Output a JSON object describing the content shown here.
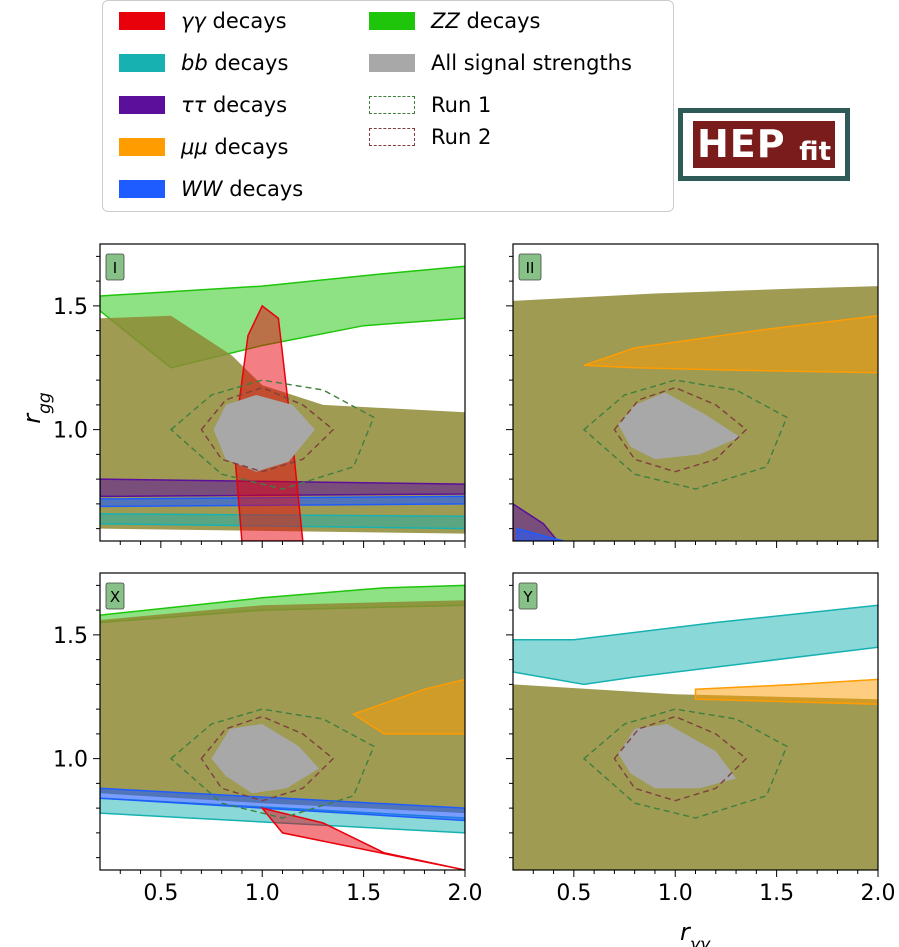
{
  "legend": {
    "items": [
      {
        "id": "gg",
        "italic": "γγ",
        "text": " decays",
        "color": "#e8000b",
        "style": "solid"
      },
      {
        "id": "bb",
        "italic": "bb",
        "text": " decays",
        "color": "#17b1b1",
        "style": "solid"
      },
      {
        "id": "tautau",
        "italic": "ττ",
        "text": " decays",
        "color": "#5b0f9b",
        "style": "solid"
      },
      {
        "id": "mumu",
        "italic": "μμ",
        "text": " decays",
        "color": "#ff9c00",
        "style": "solid"
      },
      {
        "id": "ww",
        "italic": "WW",
        "text": " decays",
        "color": "#1f5cff",
        "style": "solid"
      },
      {
        "id": "zz",
        "italic": "ZZ",
        "text": " decays",
        "color": "#1ec50a",
        "style": "solid"
      },
      {
        "id": "all",
        "italic": "",
        "text": "All signal strengths",
        "color": "#a8a8a8",
        "style": "solid"
      },
      {
        "id": "run1",
        "italic": "",
        "text": "Run 1",
        "color": "#3f7f3f",
        "style": "dashed"
      },
      {
        "id": "run2",
        "italic": "",
        "text": "Run 2",
        "color": "#7f3f3f",
        "style": "dashed"
      }
    ]
  },
  "logo": {
    "big": "HEP",
    "small": "fit"
  },
  "colors": {
    "zz": "#1ec50a",
    "bb": "#17b1b1",
    "tautau": "#5b0f9b",
    "mumu": "#ff9c00",
    "ww": "#1f5cff",
    "gg": "#e8000b",
    "all": "#a8a8a8",
    "olive": "#8e8a34",
    "run1": "#3f7f3f",
    "run2": "#7f3f3f"
  },
  "axes": {
    "xlabel_base": "r",
    "xlabel_sub": "γγ",
    "ylabel_base": "r",
    "ylabel_sub": "gg",
    "x_ticks": [
      "0.5",
      "1.0",
      "1.5",
      "2.0"
    ],
    "y_ticks": [
      "1.0",
      "1.5"
    ]
  },
  "chart_data": [
    {
      "type": "area",
      "panel": "I",
      "xlim": [
        0.2,
        2.0
      ],
      "ylim": [
        0.55,
        1.75
      ],
      "x_ticks": [
        0.5,
        1.0,
        1.5,
        2.0
      ],
      "y_ticks": [
        1.0,
        1.5
      ],
      "regions": {
        "zz": [
          [
            0.2,
            1.54
          ],
          [
            1.0,
            1.58
          ],
          [
            1.6,
            1.63
          ],
          [
            2.0,
            1.66
          ],
          [
            2.0,
            1.45
          ],
          [
            1.5,
            1.42
          ],
          [
            1.0,
            1.34
          ],
          [
            0.55,
            1.25
          ],
          [
            0.2,
            1.48
          ]
        ],
        "olive": [
          [
            0.2,
            1.45
          ],
          [
            0.55,
            1.46
          ],
          [
            0.85,
            1.3
          ],
          [
            1.0,
            1.18
          ],
          [
            1.3,
            1.1
          ],
          [
            2.0,
            1.07
          ],
          [
            2.0,
            0.58
          ],
          [
            0.2,
            0.6
          ]
        ],
        "tautau": [
          [
            0.2,
            0.73
          ],
          [
            2.0,
            0.74
          ],
          [
            2.0,
            0.78
          ],
          [
            0.2,
            0.8
          ]
        ],
        "bb": [
          [
            0.2,
            0.62
          ],
          [
            2.0,
            0.6
          ],
          [
            2.0,
            0.65
          ],
          [
            0.2,
            0.66
          ]
        ],
        "ww": [
          [
            0.2,
            0.69
          ],
          [
            2.0,
            0.7
          ],
          [
            2.0,
            0.73
          ],
          [
            0.2,
            0.72
          ]
        ],
        "gg": [
          [
            0.9,
            0.55
          ],
          [
            0.86,
            0.95
          ],
          [
            0.93,
            1.38
          ],
          [
            1.0,
            1.5
          ],
          [
            1.08,
            1.45
          ],
          [
            1.15,
            0.95
          ],
          [
            1.2,
            0.55
          ]
        ],
        "all": [
          [
            0.76,
            1.0
          ],
          [
            0.82,
            1.1
          ],
          [
            0.97,
            1.14
          ],
          [
            1.15,
            1.1
          ],
          [
            1.26,
            1.0
          ],
          [
            1.13,
            0.87
          ],
          [
            0.97,
            0.83
          ],
          [
            0.82,
            0.88
          ]
        ]
      }
    },
    {
      "type": "area",
      "panel": "II",
      "xlim": [
        0.2,
        2.0
      ],
      "ylim": [
        0.55,
        1.75
      ],
      "x_ticks": [
        0.5,
        1.0,
        1.5,
        2.0
      ],
      "y_ticks": [
        1.0,
        1.5
      ],
      "regions": {
        "olive": [
          [
            0.2,
            1.52
          ],
          [
            0.9,
            1.55
          ],
          [
            1.6,
            1.57
          ],
          [
            2.0,
            1.58
          ],
          [
            2.0,
            0.55
          ],
          [
            0.2,
            0.55
          ]
        ],
        "mumu": [
          [
            0.55,
            1.26
          ],
          [
            0.8,
            1.33
          ],
          [
            1.4,
            1.4
          ],
          [
            2.0,
            1.46
          ],
          [
            2.0,
            1.23
          ],
          [
            1.3,
            1.24
          ],
          [
            0.8,
            1.25
          ]
        ],
        "all": [
          [
            0.72,
            1.02
          ],
          [
            0.8,
            1.1
          ],
          [
            0.95,
            1.15
          ],
          [
            1.15,
            1.06
          ],
          [
            1.32,
            0.97
          ],
          [
            1.12,
            0.9
          ],
          [
            0.9,
            0.88
          ],
          [
            0.78,
            0.93
          ]
        ],
        "tautau": [
          [
            0.2,
            0.7
          ],
          [
            0.35,
            0.62
          ],
          [
            0.42,
            0.55
          ],
          [
            0.2,
            0.55
          ]
        ],
        "ww": [
          [
            0.22,
            0.6
          ],
          [
            0.4,
            0.56
          ],
          [
            0.45,
            0.55
          ],
          [
            0.22,
            0.55
          ]
        ]
      }
    },
    {
      "type": "area",
      "panel": "X",
      "xlim": [
        0.2,
        2.0
      ],
      "ylim": [
        0.55,
        1.75
      ],
      "x_ticks": [
        0.5,
        1.0,
        1.5,
        2.0
      ],
      "y_ticks": [
        1.0,
        1.5
      ],
      "regions": {
        "zz": [
          [
            0.2,
            1.58
          ],
          [
            1.0,
            1.65
          ],
          [
            1.6,
            1.69
          ],
          [
            2.0,
            1.7
          ],
          [
            2.0,
            1.62
          ],
          [
            1.0,
            1.6
          ],
          [
            0.2,
            1.55
          ]
        ],
        "olive": [
          [
            0.2,
            1.56
          ],
          [
            1.0,
            1.62
          ],
          [
            2.0,
            1.64
          ],
          [
            2.0,
            0.78
          ],
          [
            1.0,
            0.82
          ],
          [
            0.2,
            0.86
          ]
        ],
        "mumu": [
          [
            1.45,
            1.18
          ],
          [
            1.8,
            1.28
          ],
          [
            2.0,
            1.32
          ],
          [
            2.0,
            1.1
          ],
          [
            1.6,
            1.1
          ]
        ],
        "bb": [
          [
            0.2,
            0.84
          ],
          [
            2.0,
            0.76
          ],
          [
            2.0,
            0.7
          ],
          [
            0.2,
            0.78
          ]
        ],
        "ww": [
          [
            0.2,
            0.88
          ],
          [
            2.0,
            0.8
          ],
          [
            2.0,
            0.75
          ],
          [
            0.2,
            0.84
          ]
        ],
        "gg": [
          [
            1.0,
            0.8
          ],
          [
            1.3,
            0.74
          ],
          [
            1.6,
            0.62
          ],
          [
            2.0,
            0.55
          ],
          [
            2.0,
            0.55
          ],
          [
            1.1,
            0.7
          ]
        ],
        "all": [
          [
            0.75,
            1.0
          ],
          [
            0.84,
            1.12
          ],
          [
            1.0,
            1.14
          ],
          [
            1.18,
            1.05
          ],
          [
            1.28,
            0.96
          ],
          [
            1.12,
            0.88
          ],
          [
            0.95,
            0.86
          ],
          [
            0.82,
            0.93
          ]
        ]
      }
    },
    {
      "type": "area",
      "panel": "Y",
      "xlim": [
        0.2,
        2.0
      ],
      "ylim": [
        0.55,
        1.75
      ],
      "x_ticks": [
        0.5,
        1.0,
        1.5,
        2.0
      ],
      "y_ticks": [
        1.0,
        1.5
      ],
      "regions": {
        "bb": [
          [
            0.2,
            1.48
          ],
          [
            0.5,
            1.48
          ],
          [
            1.2,
            1.55
          ],
          [
            2.0,
            1.62
          ],
          [
            2.0,
            1.45
          ],
          [
            1.3,
            1.38
          ],
          [
            0.8,
            1.33
          ],
          [
            0.55,
            1.3
          ],
          [
            0.2,
            1.35
          ]
        ],
        "olive": [
          [
            0.2,
            1.3
          ],
          [
            1.0,
            1.26
          ],
          [
            2.0,
            1.24
          ],
          [
            2.0,
            0.55
          ],
          [
            0.2,
            0.55
          ]
        ],
        "mumu": [
          [
            1.1,
            1.28
          ],
          [
            1.6,
            1.3
          ],
          [
            2.0,
            1.32
          ],
          [
            2.0,
            1.22
          ],
          [
            1.1,
            1.24
          ]
        ],
        "all": [
          [
            0.72,
            1.02
          ],
          [
            0.8,
            1.12
          ],
          [
            0.96,
            1.14
          ],
          [
            1.2,
            1.03
          ],
          [
            1.3,
            0.92
          ],
          [
            1.12,
            0.88
          ],
          [
            0.9,
            0.88
          ],
          [
            0.78,
            0.94
          ]
        ]
      }
    }
  ]
}
